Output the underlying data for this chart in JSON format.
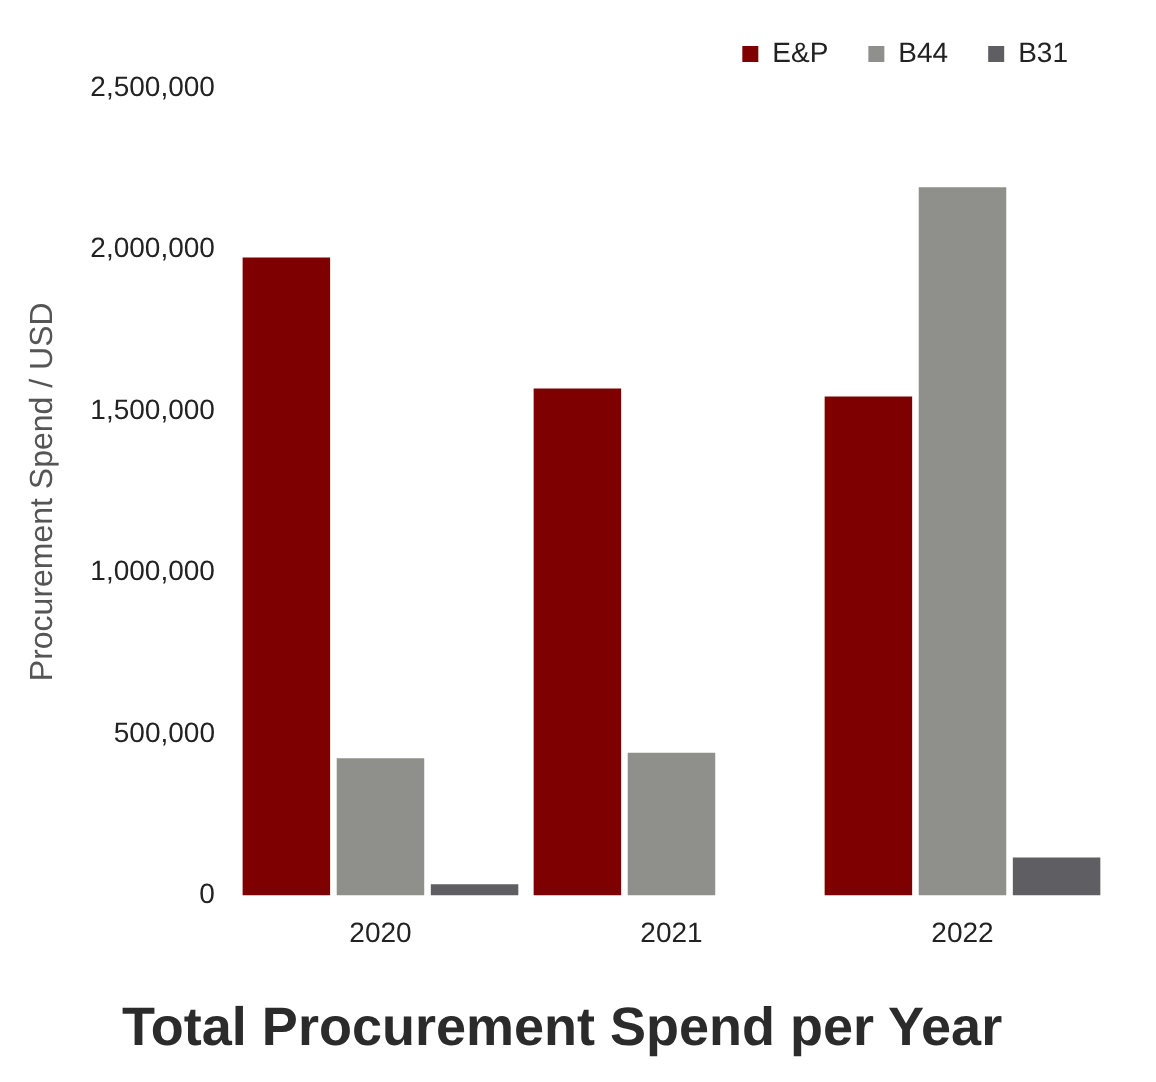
{
  "chart_data": {
    "type": "bar",
    "title": "Total Procurement Spend per Year",
    "ylabel": "Procurement Spend / USD",
    "categories": [
      "2020",
      "2021",
      "2022"
    ],
    "series": [
      {
        "name": "E&P",
        "color": "#7f0000",
        "values": [
          1975000,
          1570000,
          1545000
        ]
      },
      {
        "name": "B44",
        "color": "#8f8f8b",
        "values": [
          425000,
          442000,
          2193000
        ]
      },
      {
        "name": "B31",
        "color": "#5f5e63",
        "values": [
          35000,
          null,
          118000
        ]
      }
    ],
    "ylim": [
      0,
      2500000
    ],
    "yticks": [
      0,
      {
        "value": 500000,
        "label": "500,000"
      },
      {
        "value": 1000000,
        "label": "1,000,000"
      },
      {
        "value": 1500000,
        "label": "1,500,000"
      },
      {
        "value": 2000000,
        "label": "2,000,000"
      },
      {
        "value": 2500000,
        "label": "2,500,000"
      }
    ],
    "grid": false,
    "legend": "top"
  }
}
